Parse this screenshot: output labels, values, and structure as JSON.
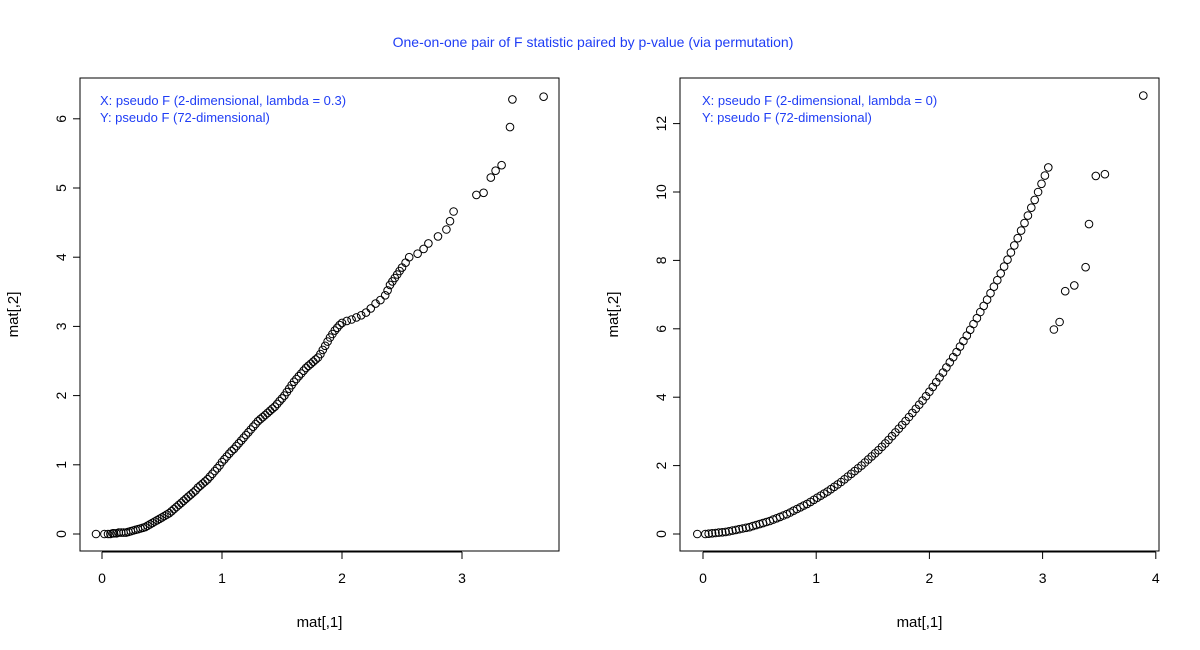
{
  "figure_title": "One-on-one pair of F statistic paired by p-value (via permutation)",
  "chart_data": [
    {
      "type": "scatter",
      "title": "",
      "xlabel": "mat[,1]",
      "ylabel": "mat[,2]",
      "xlim": [
        0,
        3.7
      ],
      "ylim": [
        0,
        6.3
      ],
      "xticks": [
        0,
        1,
        2,
        3
      ],
      "yticks": [
        0,
        1,
        2,
        3,
        4,
        5,
        6
      ],
      "annotations": [
        "X: pseudo F (2-dimensional, lambda = 0.3)",
        "Y: pseudo F (72-dimensional)"
      ],
      "annotation_color": "#1f3df5",
      "points": [
        [
          -0.05,
          0.0
        ],
        [
          0.02,
          0.0
        ],
        [
          0.05,
          0.0
        ],
        [
          0.07,
          0.0
        ],
        [
          0.09,
          0.01
        ],
        [
          0.1,
          0.01
        ],
        [
          0.12,
          0.01
        ],
        [
          0.14,
          0.02
        ],
        [
          0.16,
          0.02
        ],
        [
          0.18,
          0.02
        ],
        [
          0.2,
          0.02
        ],
        [
          0.22,
          0.03
        ],
        [
          0.24,
          0.04
        ],
        [
          0.26,
          0.05
        ],
        [
          0.28,
          0.06
        ],
        [
          0.3,
          0.07
        ],
        [
          0.32,
          0.08
        ],
        [
          0.34,
          0.09
        ],
        [
          0.36,
          0.1
        ],
        [
          0.38,
          0.12
        ],
        [
          0.4,
          0.14
        ],
        [
          0.42,
          0.16
        ],
        [
          0.44,
          0.18
        ],
        [
          0.46,
          0.2
        ],
        [
          0.48,
          0.22
        ],
        [
          0.5,
          0.24
        ],
        [
          0.52,
          0.26
        ],
        [
          0.54,
          0.28
        ],
        [
          0.56,
          0.3
        ],
        [
          0.58,
          0.33
        ],
        [
          0.6,
          0.36
        ],
        [
          0.62,
          0.39
        ],
        [
          0.64,
          0.42
        ],
        [
          0.66,
          0.45
        ],
        [
          0.68,
          0.48
        ],
        [
          0.7,
          0.51
        ],
        [
          0.72,
          0.54
        ],
        [
          0.74,
          0.57
        ],
        [
          0.76,
          0.6
        ],
        [
          0.78,
          0.63
        ],
        [
          0.8,
          0.67
        ],
        [
          0.82,
          0.7
        ],
        [
          0.84,
          0.73
        ],
        [
          0.86,
          0.76
        ],
        [
          0.88,
          0.79
        ],
        [
          0.9,
          0.83
        ],
        [
          0.92,
          0.87
        ],
        [
          0.94,
          0.91
        ],
        [
          0.96,
          0.95
        ],
        [
          0.98,
          0.99
        ],
        [
          1.0,
          1.04
        ],
        [
          1.02,
          1.08
        ],
        [
          1.04,
          1.12
        ],
        [
          1.06,
          1.16
        ],
        [
          1.08,
          1.2
        ],
        [
          1.1,
          1.23
        ],
        [
          1.12,
          1.27
        ],
        [
          1.14,
          1.31
        ],
        [
          1.16,
          1.35
        ],
        [
          1.18,
          1.39
        ],
        [
          1.2,
          1.43
        ],
        [
          1.22,
          1.47
        ],
        [
          1.24,
          1.51
        ],
        [
          1.26,
          1.55
        ],
        [
          1.28,
          1.59
        ],
        [
          1.3,
          1.63
        ],
        [
          1.32,
          1.66
        ],
        [
          1.34,
          1.69
        ],
        [
          1.36,
          1.72
        ],
        [
          1.38,
          1.75
        ],
        [
          1.4,
          1.78
        ],
        [
          1.42,
          1.81
        ],
        [
          1.44,
          1.84
        ],
        [
          1.46,
          1.88
        ],
        [
          1.48,
          1.92
        ],
        [
          1.5,
          1.96
        ],
        [
          1.52,
          2.0
        ],
        [
          1.54,
          2.05
        ],
        [
          1.56,
          2.1
        ],
        [
          1.58,
          2.15
        ],
        [
          1.6,
          2.2
        ],
        [
          1.62,
          2.24
        ],
        [
          1.64,
          2.28
        ],
        [
          1.66,
          2.32
        ],
        [
          1.68,
          2.36
        ],
        [
          1.7,
          2.4
        ],
        [
          1.72,
          2.43
        ],
        [
          1.74,
          2.46
        ],
        [
          1.76,
          2.49
        ],
        [
          1.78,
          2.52
        ],
        [
          1.8,
          2.55
        ],
        [
          1.82,
          2.6
        ],
        [
          1.84,
          2.66
        ],
        [
          1.86,
          2.72
        ],
        [
          1.88,
          2.78
        ],
        [
          1.9,
          2.84
        ],
        [
          1.92,
          2.89
        ],
        [
          1.94,
          2.94
        ],
        [
          1.96,
          2.98
        ],
        [
          1.98,
          3.02
        ],
        [
          2.0,
          3.05
        ],
        [
          2.04,
          3.08
        ],
        [
          2.08,
          3.1
        ],
        [
          2.12,
          3.13
        ],
        [
          2.16,
          3.16
        ],
        [
          2.2,
          3.2
        ],
        [
          2.24,
          3.26
        ],
        [
          2.28,
          3.33
        ],
        [
          2.32,
          3.38
        ],
        [
          2.36,
          3.45
        ],
        [
          2.38,
          3.52
        ],
        [
          2.4,
          3.6
        ],
        [
          2.42,
          3.65
        ],
        [
          2.44,
          3.7
        ],
        [
          2.46,
          3.75
        ],
        [
          2.48,
          3.8
        ],
        [
          2.5,
          3.85
        ],
        [
          2.53,
          3.92
        ],
        [
          2.56,
          4.0
        ],
        [
          2.63,
          4.05
        ],
        [
          2.68,
          4.12
        ],
        [
          2.72,
          4.2
        ],
        [
          2.8,
          4.3
        ],
        [
          2.87,
          4.4
        ],
        [
          2.9,
          4.52
        ],
        [
          2.93,
          4.66
        ],
        [
          3.12,
          4.9
        ],
        [
          3.18,
          4.93
        ],
        [
          3.24,
          5.15
        ],
        [
          3.28,
          5.25
        ],
        [
          3.33,
          5.33
        ],
        [
          3.4,
          5.88
        ],
        [
          3.42,
          6.28
        ],
        [
          3.68,
          6.32
        ]
      ]
    },
    {
      "type": "scatter",
      "title": "",
      "xlabel": "mat[,1]",
      "ylabel": "mat[,2]",
      "xlim": [
        0,
        4
      ],
      "ylim": [
        0,
        12.8
      ],
      "xticks": [
        0,
        1,
        2,
        3,
        4
      ],
      "yticks": [
        0,
        2,
        4,
        6,
        8,
        10,
        12
      ],
      "annotations": [
        "X: pseudo F (2-dimensional, lambda = 0)",
        "Y: pseudo F (72-dimensional)"
      ],
      "annotation_color": "#1f3df5",
      "points": [
        [
          -0.05,
          0.0
        ],
        [
          0.02,
          0.0
        ],
        [
          0.05,
          0.01
        ],
        [
          0.08,
          0.02
        ],
        [
          0.11,
          0.03
        ],
        [
          0.14,
          0.04
        ],
        [
          0.17,
          0.05
        ],
        [
          0.2,
          0.06
        ],
        [
          0.23,
          0.08
        ],
        [
          0.26,
          0.1
        ],
        [
          0.29,
          0.12
        ],
        [
          0.32,
          0.14
        ],
        [
          0.35,
          0.16
        ],
        [
          0.38,
          0.18
        ],
        [
          0.41,
          0.2
        ],
        [
          0.44,
          0.23
        ],
        [
          0.47,
          0.26
        ],
        [
          0.5,
          0.29
        ],
        [
          0.53,
          0.32
        ],
        [
          0.56,
          0.35
        ],
        [
          0.59,
          0.38
        ],
        [
          0.62,
          0.42
        ],
        [
          0.65,
          0.46
        ],
        [
          0.68,
          0.5
        ],
        [
          0.71,
          0.54
        ],
        [
          0.74,
          0.58
        ],
        [
          0.77,
          0.63
        ],
        [
          0.8,
          0.68
        ],
        [
          0.83,
          0.73
        ],
        [
          0.86,
          0.78
        ],
        [
          0.89,
          0.83
        ],
        [
          0.92,
          0.88
        ],
        [
          0.95,
          0.94
        ],
        [
          0.98,
          1.0
        ],
        [
          1.01,
          1.06
        ],
        [
          1.04,
          1.12
        ],
        [
          1.07,
          1.18
        ],
        [
          1.1,
          1.24
        ],
        [
          1.13,
          1.31
        ],
        [
          1.16,
          1.38
        ],
        [
          1.19,
          1.45
        ],
        [
          1.22,
          1.52
        ],
        [
          1.25,
          1.6
        ],
        [
          1.28,
          1.68
        ],
        [
          1.31,
          1.76
        ],
        [
          1.34,
          1.84
        ],
        [
          1.37,
          1.92
        ],
        [
          1.4,
          2.0
        ],
        [
          1.43,
          2.09
        ],
        [
          1.46,
          2.18
        ],
        [
          1.49,
          2.27
        ],
        [
          1.52,
          2.36
        ],
        [
          1.55,
          2.45
        ],
        [
          1.58,
          2.55
        ],
        [
          1.61,
          2.65
        ],
        [
          1.64,
          2.75
        ],
        [
          1.67,
          2.86
        ],
        [
          1.7,
          2.97
        ],
        [
          1.73,
          3.08
        ],
        [
          1.76,
          3.19
        ],
        [
          1.79,
          3.3
        ],
        [
          1.82,
          3.42
        ],
        [
          1.85,
          3.54
        ],
        [
          1.88,
          3.66
        ],
        [
          1.91,
          3.78
        ],
        [
          1.94,
          3.9
        ],
        [
          1.97,
          4.03
        ],
        [
          2.0,
          4.16
        ],
        [
          2.03,
          4.3
        ],
        [
          2.06,
          4.44
        ],
        [
          2.09,
          4.58
        ],
        [
          2.12,
          4.72
        ],
        [
          2.15,
          4.87
        ],
        [
          2.18,
          5.02
        ],
        [
          2.21,
          5.17
        ],
        [
          2.24,
          5.32
        ],
        [
          2.27,
          5.48
        ],
        [
          2.3,
          5.64
        ],
        [
          2.33,
          5.8
        ],
        [
          2.36,
          5.97
        ],
        [
          2.39,
          6.14
        ],
        [
          2.42,
          6.31
        ],
        [
          2.45,
          6.49
        ],
        [
          2.48,
          6.67
        ],
        [
          2.51,
          6.85
        ],
        [
          2.54,
          7.04
        ],
        [
          2.57,
          7.23
        ],
        [
          2.6,
          7.42
        ],
        [
          2.63,
          7.62
        ],
        [
          2.66,
          7.82
        ],
        [
          2.69,
          8.02
        ],
        [
          2.72,
          8.23
        ],
        [
          2.75,
          8.44
        ],
        [
          2.78,
          8.65
        ],
        [
          2.81,
          8.87
        ],
        [
          2.84,
          9.09
        ],
        [
          2.87,
          9.31
        ],
        [
          2.9,
          9.54
        ],
        [
          2.93,
          9.77
        ],
        [
          2.96,
          10.0
        ],
        [
          2.99,
          10.24
        ],
        [
          3.02,
          10.48
        ],
        [
          3.05,
          10.72
        ],
        [
          3.1,
          5.98
        ],
        [
          3.15,
          6.2
        ],
        [
          3.2,
          7.1
        ],
        [
          3.28,
          7.27
        ],
        [
          3.38,
          7.8
        ],
        [
          3.41,
          9.06
        ],
        [
          3.47,
          10.47
        ],
        [
          3.55,
          10.52
        ],
        [
          3.89,
          12.82
        ]
      ]
    }
  ]
}
